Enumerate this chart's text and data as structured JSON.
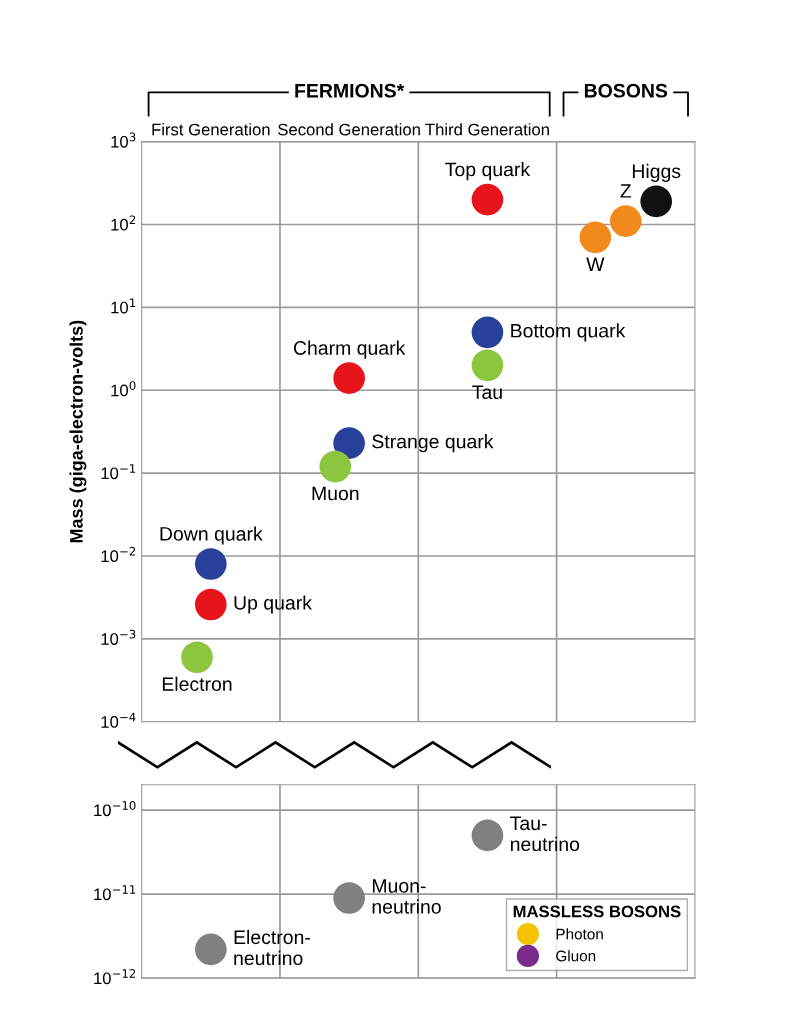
{
  "chart_data": [
    {
      "type": "scatter",
      "ylabel": "Mass (giga-electron-volts)",
      "categories": [
        "First Generation",
        "Second Generation",
        "Third Generation",
        null
      ],
      "annotations": [
        "FERMIONS*",
        "BOSONS"
      ],
      "log": true,
      "ylim": [
        0.0001,
        1000
      ],
      "yticks": [
        {
          "value": 0.0001,
          "label": "10$^{−4}$"
        },
        {
          "value": 0.001,
          "label": "10$^{−3}$"
        },
        {
          "value": 0.01,
          "label": "10$^{−2}$"
        },
        {
          "value": 0.1,
          "label": "10$^{−1}$"
        },
        {
          "value": 1,
          "label": "10$^{0}$"
        },
        {
          "value": 10,
          "label": "10$^{1}$"
        },
        {
          "value": 100,
          "label": "10$^{2}$"
        },
        {
          "value": 1000,
          "label": "10$^{3}$"
        }
      ],
      "grid": true,
      "marker": "circle",
      "series": [
        {
          "name": "Down quark",
          "color": "#27409a",
          "values": [
            0.008,
            null,
            null,
            null
          ]
        },
        {
          "name": "Up quark",
          "color": "#e8141c",
          "values": [
            0.0026,
            null,
            null,
            null
          ]
        },
        {
          "name": "Electron",
          "color": "#8cc63f",
          "values": [
            0.0006,
            null,
            null,
            null
          ]
        },
        {
          "name": "Charm quark",
          "color": "#e8141c",
          "values": [
            null,
            1.4,
            null,
            null
          ]
        },
        {
          "name": "Strange quark",
          "color": "#27409a",
          "values": [
            null,
            0.23,
            null,
            null
          ]
        },
        {
          "name": "Muon",
          "color": "#8cc63f",
          "values": [
            null,
            0.12,
            null,
            null
          ]
        },
        {
          "name": "Top quark",
          "color": "#e8141c",
          "values": [
            null,
            null,
            200,
            null
          ]
        },
        {
          "name": "Bottom quark",
          "color": "#27409a",
          "values": [
            null,
            null,
            5,
            null
          ]
        },
        {
          "name": "Tau",
          "color": "#8cc63f",
          "values": [
            null,
            null,
            2,
            null
          ]
        },
        {
          "name": "W",
          "color": "#f08a1c",
          "values": [
            null,
            null,
            null,
            70
          ]
        },
        {
          "name": "Z",
          "color": "#f08a1c",
          "values": [
            null,
            null,
            null,
            110
          ]
        },
        {
          "name": "Higgs",
          "color": "#111111",
          "values": [
            null,
            null,
            null,
            190
          ]
        }
      ]
    },
    {
      "type": "scatter",
      "categories": [
        null,
        null,
        null,
        null
      ],
      "log": true,
      "ylim": [
        1e-12,
        2e-10
      ],
      "yticks": [
        {
          "value": 1e-12,
          "label": "10$^{−12}$"
        },
        {
          "value": 1e-11,
          "label": "10$^{−11}$"
        },
        {
          "value": 1e-10,
          "label": "10$^{−10}$"
        }
      ],
      "tick_labels": "y",
      "grid": true,
      "marker": "circle",
      "legend": "lower right",
      "legend_title": "MASSLESS BOSONS",
      "series": [
        {
          "name": "Electron-\nneutrino",
          "color": "#808080",
          "values": [
            2.2e-12,
            null,
            null,
            null
          ]
        },
        {
          "name": "Muon-\nneutrino",
          "color": "#808080",
          "values": [
            null,
            9e-12,
            null,
            null
          ]
        },
        {
          "name": "Tau-\nneutrino",
          "color": "#808080",
          "values": [
            null,
            null,
            5e-11,
            null
          ]
        },
        {
          "name": "Photon",
          "color": "#f5c400",
          "values": [
            null,
            null,
            null,
            null
          ]
        },
        {
          "name": "Gluon",
          "color": "#7a2a8a",
          "values": [
            null,
            null,
            null,
            null
          ]
        }
      ]
    }
  ]
}
